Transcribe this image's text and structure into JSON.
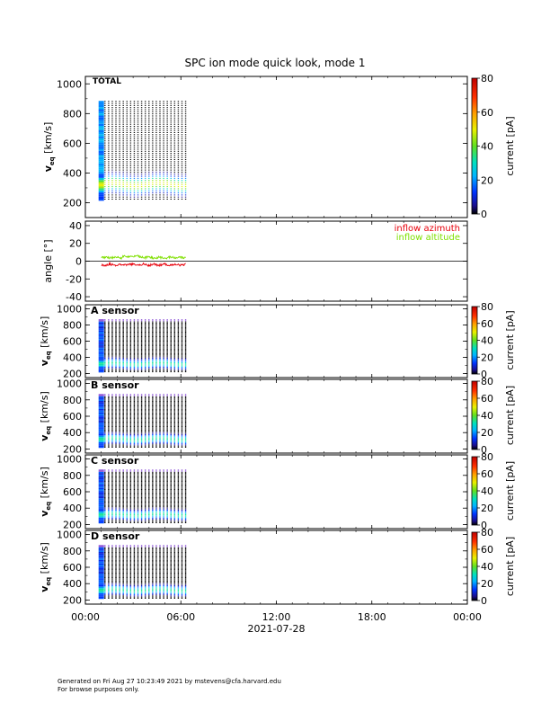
{
  "chart_data": {
    "type": "heatmap",
    "title": "SPC ion mode quick look, mode 1",
    "xlabel": "2021-07-28",
    "x_tick_labels": [
      "00:00",
      "06:00",
      "12:00",
      "18:00",
      "00:00"
    ],
    "x_range_hours": [
      0,
      24
    ],
    "data_coverage_hours": [
      1.0,
      6.3
    ],
    "scan_count": 24,
    "panels": [
      {
        "name": "total",
        "label": "TOTAL",
        "ylabel_main": "v",
        "ylabel_sub": "eq",
        "ylabel_unit": " [km/s]",
        "ylim": [
          100,
          1050
        ],
        "yticks": [
          "200",
          "400",
          "600",
          "800",
          "1000"
        ],
        "ytick_values": [
          200,
          400,
          600,
          800,
          1000
        ],
        "colorbar_label": "current [pA]",
        "colorbar_range": [
          0,
          80
        ],
        "colorbar_ticks": [
          "0",
          "20",
          "40",
          "60",
          "80"
        ],
        "colorbar_tick_values": [
          0,
          20,
          40,
          60,
          80
        ],
        "top_velocity": 880,
        "peak_velocity": 320
      },
      {
        "name": "a-sensor",
        "label": "A sensor",
        "ylabel_main": "v",
        "ylabel_sub": "eq",
        "ylabel_unit": " [km/s]",
        "ylim": [
          150,
          1050
        ],
        "yticks": [
          "200",
          "400",
          "600",
          "800",
          "1000"
        ],
        "ytick_values": [
          200,
          400,
          600,
          800,
          1000
        ],
        "colorbar_label": "current [pA]",
        "colorbar_range": [
          0,
          80
        ],
        "colorbar_ticks": [
          "0",
          "20",
          "40",
          "60",
          "80"
        ],
        "colorbar_tick_values": [
          0,
          20,
          40,
          60,
          80
        ],
        "top_velocity": 870,
        "peak_velocity": 320
      },
      {
        "name": "b-sensor",
        "label": "B sensor",
        "ylabel_main": "v",
        "ylabel_sub": "eq",
        "ylabel_unit": " [km/s]",
        "ylim": [
          150,
          1050
        ],
        "yticks": [
          "200",
          "400",
          "600",
          "800",
          "1000"
        ],
        "ytick_values": [
          200,
          400,
          600,
          800,
          1000
        ],
        "colorbar_label": "current [pA]",
        "colorbar_range": [
          0,
          80
        ],
        "colorbar_ticks": [
          "0",
          "20",
          "40",
          "60",
          "80"
        ],
        "colorbar_tick_values": [
          0,
          20,
          40,
          60,
          80
        ],
        "top_velocity": 870,
        "peak_velocity": 320
      },
      {
        "name": "c-sensor",
        "label": "C sensor",
        "ylabel_main": "v",
        "ylabel_sub": "eq",
        "ylabel_unit": " [km/s]",
        "ylim": [
          150,
          1050
        ],
        "yticks": [
          "200",
          "400",
          "600",
          "800",
          "1000"
        ],
        "ytick_values": [
          200,
          400,
          600,
          800,
          1000
        ],
        "colorbar_label": "current [pA]",
        "colorbar_range": [
          0,
          80
        ],
        "colorbar_ticks": [
          "0",
          "20",
          "40",
          "60",
          "80"
        ],
        "colorbar_tick_values": [
          0,
          20,
          40,
          60,
          80
        ],
        "top_velocity": 870,
        "peak_velocity": 320
      },
      {
        "name": "d-sensor",
        "label": "D sensor",
        "ylabel_main": "v",
        "ylabel_sub": "eq",
        "ylabel_unit": " [km/s]",
        "ylim": [
          150,
          1050
        ],
        "yticks": [
          "200",
          "400",
          "600",
          "800",
          "1000"
        ],
        "ytick_values": [
          200,
          400,
          600,
          800,
          1000
        ],
        "colorbar_label": "current [pA]",
        "colorbar_range": [
          0,
          80
        ],
        "colorbar_ticks": [
          "0",
          "20",
          "40",
          "60",
          "80"
        ],
        "colorbar_tick_values": [
          0,
          20,
          40,
          60,
          80
        ],
        "top_velocity": 870,
        "peak_velocity": 320
      }
    ],
    "angle_panel": {
      "type": "line",
      "ylabel": "angle [°]",
      "ylim": [
        -45,
        45
      ],
      "yticks": [
        "-40",
        "-20",
        "0",
        "20",
        "40"
      ],
      "ytick_values": [
        -40,
        -20,
        0,
        20,
        40
      ],
      "series": [
        {
          "name": "inflow azimuth",
          "color": "#e8000b",
          "mean": -4
        },
        {
          "name": "inflow altitude",
          "color": "#7fe000",
          "mean": 4
        }
      ]
    }
  },
  "footer": {
    "line1": "Generated on Fri Aug 27 10:23:49 2021 by mstevens@cfa.harvard.edu",
    "line2": "For browse purposes only."
  }
}
